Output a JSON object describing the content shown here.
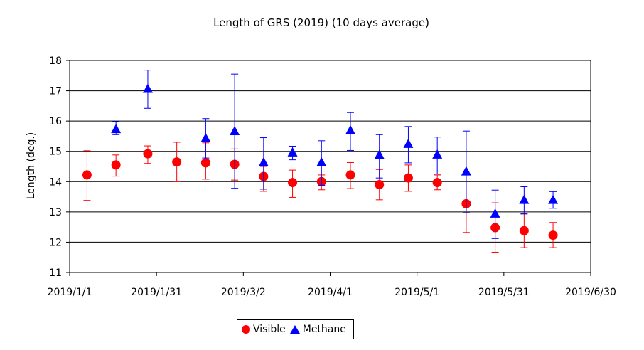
{
  "chart_data": {
    "type": "scatter",
    "title": "Length of GRS (2019) (10 days average)",
    "xlabel": "",
    "ylabel": "Length (deg.)",
    "ylim": [
      11,
      18
    ],
    "yticks": [
      "11",
      "12",
      "13",
      "14",
      "15",
      "16",
      "17",
      "18"
    ],
    "xlim": [
      "2019/1/1",
      "2019/6/30"
    ],
    "xticks": [
      "2019/1/1",
      "2019/1/31",
      "2019/3/2",
      "2019/4/1",
      "2019/5/1",
      "2019/5/31",
      "2019/6/30"
    ],
    "grid": "horizontal",
    "legend_position": "bottom",
    "series": [
      {
        "name": "Visible",
        "color": "#ff0000",
        "marker": "circle",
        "points": [
          {
            "x": "2019/1/7",
            "y": 14.22,
            "ylow": 13.38,
            "yhigh": 15.02
          },
          {
            "x": "2019/1/17",
            "y": 14.55,
            "ylow": 14.18,
            "yhigh": 14.88
          },
          {
            "x": "2019/1/28",
            "y": 14.92,
            "ylow": 14.6,
            "yhigh": 15.18
          },
          {
            "x": "2019/2/7",
            "y": 14.65,
            "ylow": 14.0,
            "yhigh": 15.3
          },
          {
            "x": "2019/2/17",
            "y": 14.62,
            "ylow": 14.08,
            "yhigh": 15.28
          },
          {
            "x": "2019/2/27",
            "y": 14.57,
            "ylow": 14.05,
            "yhigh": 15.08
          },
          {
            "x": "2019/3/9",
            "y": 14.17,
            "ylow": 13.68,
            "yhigh": 14.5
          },
          {
            "x": "2019/3/19",
            "y": 13.97,
            "ylow": 13.48,
            "yhigh": 14.38
          },
          {
            "x": "2019/3/29",
            "y": 14.0,
            "ylow": 13.73,
            "yhigh": 14.22
          },
          {
            "x": "2019/4/8",
            "y": 14.22,
            "ylow": 13.77,
            "yhigh": 14.63
          },
          {
            "x": "2019/4/18",
            "y": 13.9,
            "ylow": 13.4,
            "yhigh": 14.4
          },
          {
            "x": "2019/4/28",
            "y": 14.12,
            "ylow": 13.68,
            "yhigh": 14.55
          },
          {
            "x": "2019/5/8",
            "y": 13.97,
            "ylow": 13.73,
            "yhigh": 14.22
          },
          {
            "x": "2019/5/18",
            "y": 13.27,
            "ylow": 12.32,
            "yhigh": 14.22
          },
          {
            "x": "2019/5/28",
            "y": 12.48,
            "ylow": 11.67,
            "yhigh": 13.3
          },
          {
            "x": "2019/6/7",
            "y": 12.38,
            "ylow": 11.82,
            "yhigh": 12.95
          },
          {
            "x": "2019/6/17",
            "y": 12.23,
            "ylow": 11.82,
            "yhigh": 12.65
          }
        ]
      },
      {
        "name": "Methane",
        "color": "#0000ff",
        "marker": "triangle",
        "points": [
          {
            "x": "2019/1/17",
            "y": 15.72,
            "ylow": 15.55,
            "yhigh": 15.98
          },
          {
            "x": "2019/1/28",
            "y": 17.05,
            "ylow": 16.42,
            "yhigh": 17.68
          },
          {
            "x": "2019/2/17",
            "y": 15.42,
            "ylow": 14.78,
            "yhigh": 16.08
          },
          {
            "x": "2019/2/27",
            "y": 15.65,
            "ylow": 13.78,
            "yhigh": 17.55
          },
          {
            "x": "2019/3/9",
            "y": 14.62,
            "ylow": 13.75,
            "yhigh": 15.45
          },
          {
            "x": "2019/3/19",
            "y": 14.95,
            "ylow": 14.72,
            "yhigh": 15.17
          },
          {
            "x": "2019/3/29",
            "y": 14.62,
            "ylow": 13.88,
            "yhigh": 15.35
          },
          {
            "x": "2019/4/8",
            "y": 15.68,
            "ylow": 15.03,
            "yhigh": 16.28
          },
          {
            "x": "2019/4/18",
            "y": 14.87,
            "ylow": 14.12,
            "yhigh": 15.55
          },
          {
            "x": "2019/4/28",
            "y": 15.23,
            "ylow": 14.62,
            "yhigh": 15.82
          },
          {
            "x": "2019/5/8",
            "y": 14.88,
            "ylow": 14.25,
            "yhigh": 15.47
          },
          {
            "x": "2019/5/18",
            "y": 14.32,
            "ylow": 12.97,
            "yhigh": 15.67
          },
          {
            "x": "2019/5/28",
            "y": 12.93,
            "ylow": 12.12,
            "yhigh": 13.72
          },
          {
            "x": "2019/6/7",
            "y": 13.38,
            "ylow": 12.93,
            "yhigh": 13.83
          },
          {
            "x": "2019/6/17",
            "y": 13.38,
            "ylow": 13.12,
            "yhigh": 13.67
          }
        ]
      }
    ]
  }
}
